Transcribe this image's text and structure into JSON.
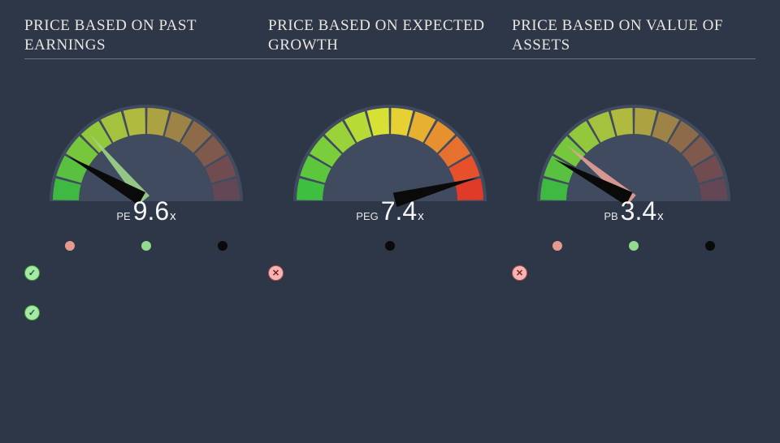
{
  "background_color": "#2d3748",
  "text_color": "#e8e6df",
  "panels": [
    {
      "title": "PRICE BASED ON PAST EARNINGS",
      "metric": "PE",
      "value": "9.6",
      "suffix": "x",
      "needle_angle": -150,
      "needle2_angle": -130,
      "needle2_color": "#9dd48a",
      "fade": true,
      "dots": [
        {
          "color": "#e69a8f",
          "show": true
        },
        {
          "color": "#93d98e",
          "show": true
        },
        {
          "color": "#0a0a0a",
          "show": true
        }
      ]
    },
    {
      "title": "PRICE BASED ON EXPECTED GROWTH",
      "metric": "PEG",
      "value": "7.4",
      "suffix": "x",
      "needle_angle": -15,
      "needle2_angle": null,
      "needle2_color": null,
      "fade": false,
      "dots": [
        {
          "color": null,
          "show": false
        },
        {
          "color": "#0a0a0a",
          "show": true
        },
        {
          "color": null,
          "show": false
        }
      ]
    },
    {
      "title": "PRICE BASED ON VALUE OF ASSETS",
      "metric": "PB",
      "value": "3.4",
      "suffix": "x",
      "needle_angle": -152,
      "needle2_angle": -140,
      "needle2_color": "#e6a196",
      "fade": true,
      "dots": [
        {
          "color": "#e69a8f",
          "show": true
        },
        {
          "color": "#93d98e",
          "show": true
        },
        {
          "color": "#0a0a0a",
          "show": true
        }
      ]
    }
  ],
  "gauge": {
    "bg_semi_color": "#434e63",
    "segment_colors": [
      "#3fbf3f",
      "#5cc63d",
      "#7acd3b",
      "#99d339",
      "#b8da37",
      "#d7e035",
      "#e6d033",
      "#e6b031",
      "#e6902f",
      "#e6702d",
      "#e6502b",
      "#e03a29"
    ],
    "segment_count": 12,
    "outer_r": 115,
    "inner_r": 83,
    "value_fontsize": 32,
    "metric_fontsize": 13,
    "suffix_fontsize": 15,
    "needle_color": "#0a0a0a",
    "title_fontsize": 19
  },
  "badge_columns": [
    {
      "items": [
        "ok",
        "ok"
      ]
    },
    {
      "items": [
        "bad"
      ]
    },
    {
      "items": [
        "bad"
      ]
    }
  ]
}
